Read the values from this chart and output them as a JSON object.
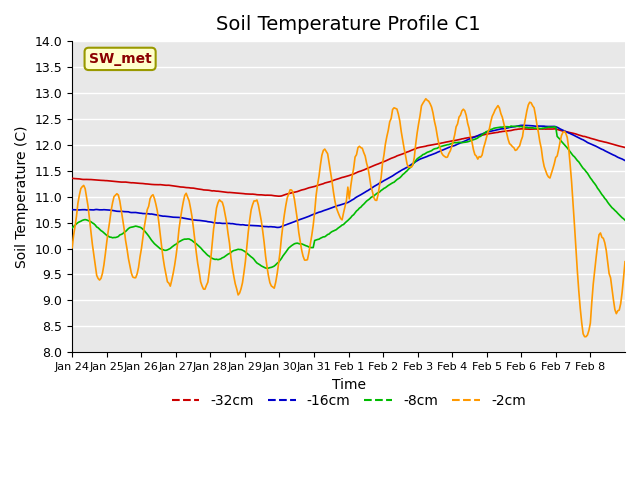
{
  "title": "Soil Temperature Profile C1",
  "xlabel": "Time",
  "ylabel": "Soil Temperature (C)",
  "ylim": [
    8.0,
    14.0
  ],
  "yticks": [
    8.0,
    8.5,
    9.0,
    9.5,
    10.0,
    10.5,
    11.0,
    11.5,
    12.0,
    12.5,
    13.0,
    13.5,
    14.0
  ],
  "xtick_labels": [
    "Jan 24",
    "Jan 25",
    "Jan 26",
    "Jan 27",
    "Jan 28",
    "Jan 29",
    "Jan 30",
    "Jan 31",
    "Feb 1",
    "Feb 2",
    "Feb 3",
    "Feb 4",
    "Feb 5",
    "Feb 6",
    "Feb 7",
    "Feb 8"
  ],
  "legend_label": "SW_met",
  "legend_bg": "#ffffcc",
  "legend_border": "#999900",
  "series_colors": {
    "m32": "#cc0000",
    "m16": "#0000cc",
    "m8": "#00bb00",
    "m2": "#ff9900"
  },
  "series_labels": [
    "-32cm",
    "-16cm",
    "-8cm",
    "-2cm"
  ],
  "bg_color": "#e8e8e8",
  "grid_color": "#ffffff",
  "title_fontsize": 14,
  "axis_fontsize": 10,
  "tick_fontsize": 9,
  "legend_fontsize": 10
}
